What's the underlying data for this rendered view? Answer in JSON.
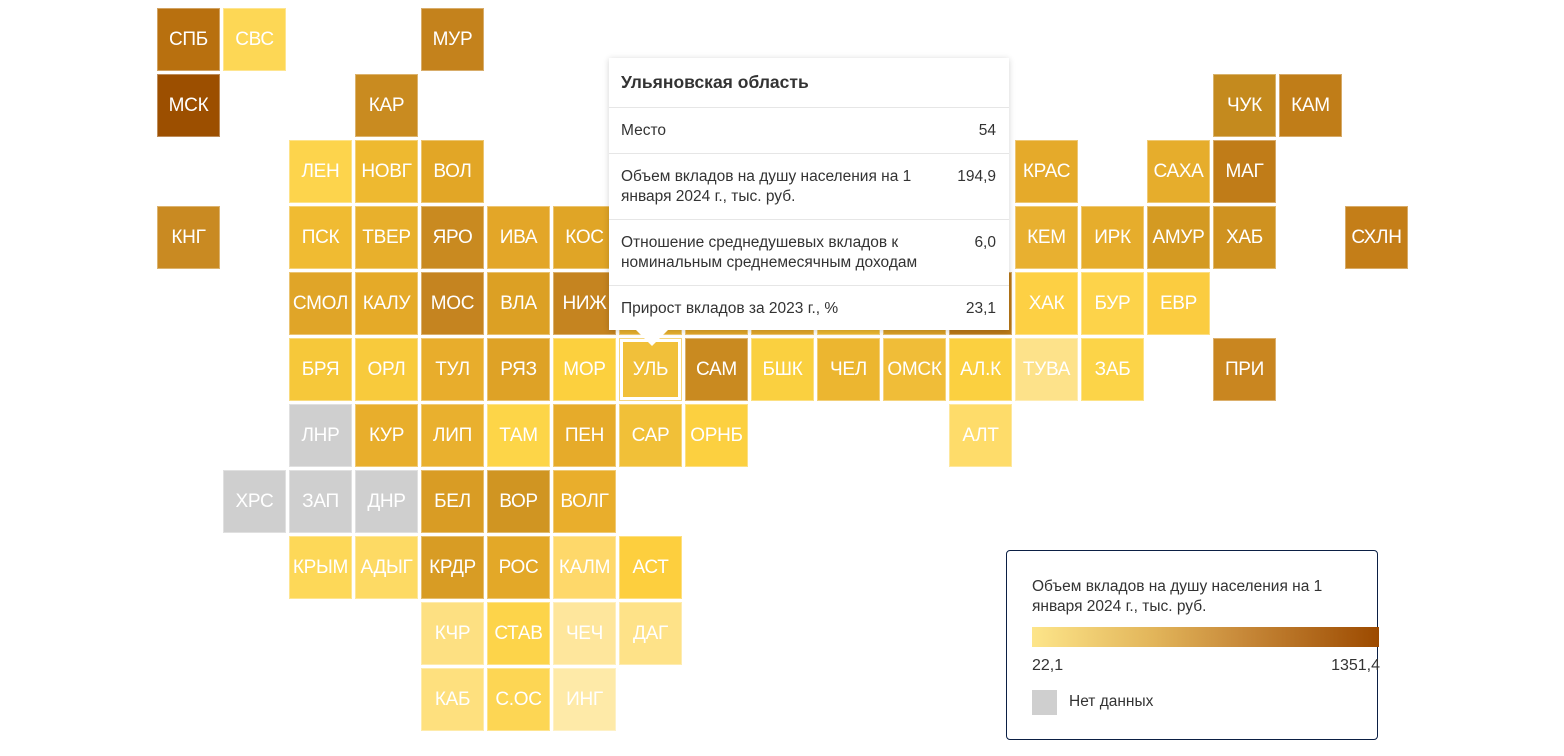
{
  "chart_data": {
    "type": "heatmap",
    "title": "",
    "metric": "Объем вкладов на душу населения на 1 января 2024 г., тыс. руб.",
    "color_scale": {
      "min": 22.1,
      "max": 1351.4,
      "min_color": "#fde58a",
      "max_color": "#9c4a00",
      "no_data_color": "#cfcfcf"
    },
    "tiles": [
      {
        "label": "СПБ",
        "color": "#b8700f"
      },
      {
        "label": "СВС",
        "color": "#fdd755"
      },
      {
        "label": "МУР",
        "color": "#c4821c"
      },
      {
        "label": "МСК",
        "color": "#9c4f00"
      },
      {
        "label": "КАР",
        "color": "#c98b20"
      },
      {
        "label": "ЧУК",
        "color": "#c48a1e"
      },
      {
        "label": "КАМ",
        "color": "#c07d18"
      },
      {
        "label": "ЛЕН",
        "color": "#fdd44c"
      },
      {
        "label": "НОВГ",
        "color": "#eeb930"
      },
      {
        "label": "ВОЛ",
        "color": "#e2a626"
      },
      {
        "label": "КРАС",
        "color": "#e5aa2a"
      },
      {
        "label": "САХА",
        "color": "#e6ad2c"
      },
      {
        "label": "МАГ",
        "color": "#c07c18"
      },
      {
        "label": "КНГ",
        "color": "#c98a22"
      },
      {
        "label": "ПСК",
        "color": "#f0bb32"
      },
      {
        "label": "ТВЕР",
        "color": "#e8b02c"
      },
      {
        "label": "ЯРО",
        "color": "#c98a20"
      },
      {
        "label": "ИВА",
        "color": "#e3a628"
      },
      {
        "label": "КОС",
        "color": "#e0a526"
      },
      {
        "label": "КЕМ",
        "color": "#e8b030"
      },
      {
        "label": "ИРК",
        "color": "#e6ad2c"
      },
      {
        "label": "АМУР",
        "color": "#d49a22"
      },
      {
        "label": "ХАБ",
        "color": "#cf9220"
      },
      {
        "label": "СХЛН",
        "color": "#c47e18"
      },
      {
        "label": "СМОЛ",
        "color": "#e0a528"
      },
      {
        "label": "КАЛУ",
        "color": "#e5aa28"
      },
      {
        "label": "МОС",
        "color": "#c58420"
      },
      {
        "label": "ВЛА",
        "color": "#dca024"
      },
      {
        "label": "НИЖ",
        "color": "#c58420"
      },
      {
        "label": "",
        "color": "#e8b02c"
      },
      {
        "label": "",
        "color": "#e2a628"
      },
      {
        "label": "",
        "color": "#e3a82a"
      },
      {
        "label": "",
        "color": "#edb830"
      },
      {
        "label": "",
        "color": "#dba024"
      },
      {
        "label": "",
        "color": "#bb7a18"
      },
      {
        "label": "ХАК",
        "color": "#fdd044"
      },
      {
        "label": "БУР",
        "color": "#fdd34a"
      },
      {
        "label": "ЕВР",
        "color": "#fbcc40"
      },
      {
        "label": "БРЯ",
        "color": "#f6c83a"
      },
      {
        "label": "ОРЛ",
        "color": "#f8ca3c"
      },
      {
        "label": "ТУЛ",
        "color": "#e8ad2c"
      },
      {
        "label": "РЯЗ",
        "color": "#dea226"
      },
      {
        "label": "МОР",
        "color": "#fcd03e"
      },
      {
        "label": "УЛЬ",
        "color": "#f1c03a"
      },
      {
        "label": "САМ",
        "color": "#c98a20"
      },
      {
        "label": "БШК",
        "color": "#fad040"
      },
      {
        "label": "ЧЕЛ",
        "color": "#ecb630"
      },
      {
        "label": "ОМСК",
        "color": "#f0bd38"
      },
      {
        "label": "АЛ.К",
        "color": "#fbd040"
      },
      {
        "label": "ТУВА",
        "color": "#fde28a"
      },
      {
        "label": "ЗАБ",
        "color": "#fcd448"
      },
      {
        "label": "ПРИ",
        "color": "#c98620"
      },
      {
        "label": "ЛНР",
        "color": "#cfcfcf"
      },
      {
        "label": "КУР",
        "color": "#e8ae2c"
      },
      {
        "label": "ЛИП",
        "color": "#e9b02e"
      },
      {
        "label": "ТАМ",
        "color": "#fdd548"
      },
      {
        "label": "ПЕН",
        "color": "#e6ab2a"
      },
      {
        "label": "САР",
        "color": "#f1c038"
      },
      {
        "label": "ОРНБ",
        "color": "#fcd040"
      },
      {
        "label": "АЛТ",
        "color": "#fedc6a"
      },
      {
        "label": "ХРС",
        "color": "#cfcfcf"
      },
      {
        "label": "ЗАП",
        "color": "#cfcfcf"
      },
      {
        "label": "ДНР",
        "color": "#cfcfcf"
      },
      {
        "label": "БЕЛ",
        "color": "#d99c24"
      },
      {
        "label": "ВОР",
        "color": "#d09522"
      },
      {
        "label": "ВОЛГ",
        "color": "#e9ae2c"
      },
      {
        "label": "КРЫМ",
        "color": "#fdd858"
      },
      {
        "label": "АДЫГ",
        "color": "#fdda64"
      },
      {
        "label": "КРДР",
        "color": "#d89c24"
      },
      {
        "label": "РОС",
        "color": "#e3a828"
      },
      {
        "label": "КАЛМ",
        "color": "#fed86a"
      },
      {
        "label": "АСТ",
        "color": "#fdcf3e"
      },
      {
        "label": "КЧР",
        "color": "#fde082"
      },
      {
        "label": "СТАВ",
        "color": "#fdd44a"
      },
      {
        "label": "ЧЕЧ",
        "color": "#fee69c"
      },
      {
        "label": "ДАГ",
        "color": "#fee288"
      },
      {
        "label": "КАБ",
        "color": "#fee07e"
      },
      {
        "label": "С.ОС",
        "color": "#fdd654"
      },
      {
        "label": "ИНГ",
        "color": "#feeaa8"
      }
    ],
    "selected": "УЛЬ"
  },
  "tooltip": {
    "title": "Ульяновская область",
    "rows": [
      {
        "label": "Место",
        "value": "54"
      },
      {
        "label": "Объем вкладов на душу населения на 1 января 2024 г., тыс. руб.",
        "value": "194,9"
      },
      {
        "label": "Отношение среднедушевых вкладов к номинальным среднемесячным доходам",
        "value": "6,0"
      },
      {
        "label": "Прирост вкладов за 2023 г., %",
        "value": "23,1"
      }
    ]
  },
  "legend": {
    "title": "Объем вкладов на душу населения на 1 января 2024 г., тыс. руб.",
    "min_label": "22,1",
    "max_label": "1351,4",
    "no_data_label": "Нет данных"
  }
}
